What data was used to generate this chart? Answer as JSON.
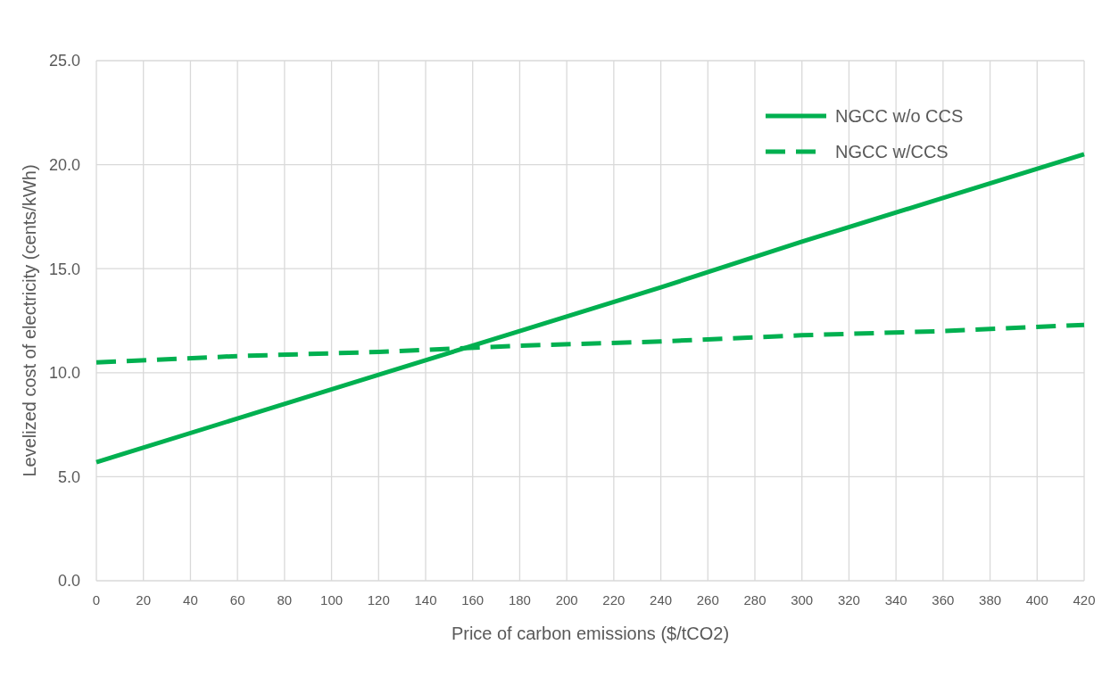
{
  "chart_data": {
    "type": "line",
    "xlabel": "Price of carbon emissions ($/tCO2)",
    "ylabel": "Levelized cost of electricity (cents/kWh)",
    "xlim": [
      0,
      420
    ],
    "xticks": [
      0,
      20,
      40,
      60,
      80,
      100,
      120,
      140,
      160,
      180,
      200,
      220,
      240,
      260,
      280,
      300,
      320,
      340,
      360,
      380,
      400,
      420
    ],
    "ylim": [
      0,
      25
    ],
    "yticks": [
      {
        "value": 0,
        "label": "0.0"
      },
      {
        "value": 5,
        "label": "5.0"
      },
      {
        "value": 10,
        "label": "10.0"
      },
      {
        "value": 15,
        "label": "15.0"
      },
      {
        "value": 20,
        "label": "20.0"
      },
      {
        "value": 25,
        "label": "25.0"
      }
    ],
    "grid": true,
    "legend": "top right",
    "marker": "none",
    "series": [
      {
        "name": "NGCC w/o CCS",
        "color": "#00b050",
        "line_style": "solid",
        "x": [
          0,
          60,
          120,
          180,
          240,
          300,
          360,
          420
        ],
        "values": [
          5.7,
          7.8,
          9.9,
          12.0,
          14.1,
          16.3,
          18.4,
          20.5
        ]
      },
      {
        "name": "NGCC w/CCS",
        "color": "#00b050",
        "line_style": "dashed",
        "x": [
          0,
          60,
          120,
          180,
          240,
          300,
          360,
          420
        ],
        "values": [
          10.5,
          10.8,
          11.0,
          11.3,
          11.5,
          11.8,
          12.0,
          12.3
        ]
      }
    ]
  }
}
